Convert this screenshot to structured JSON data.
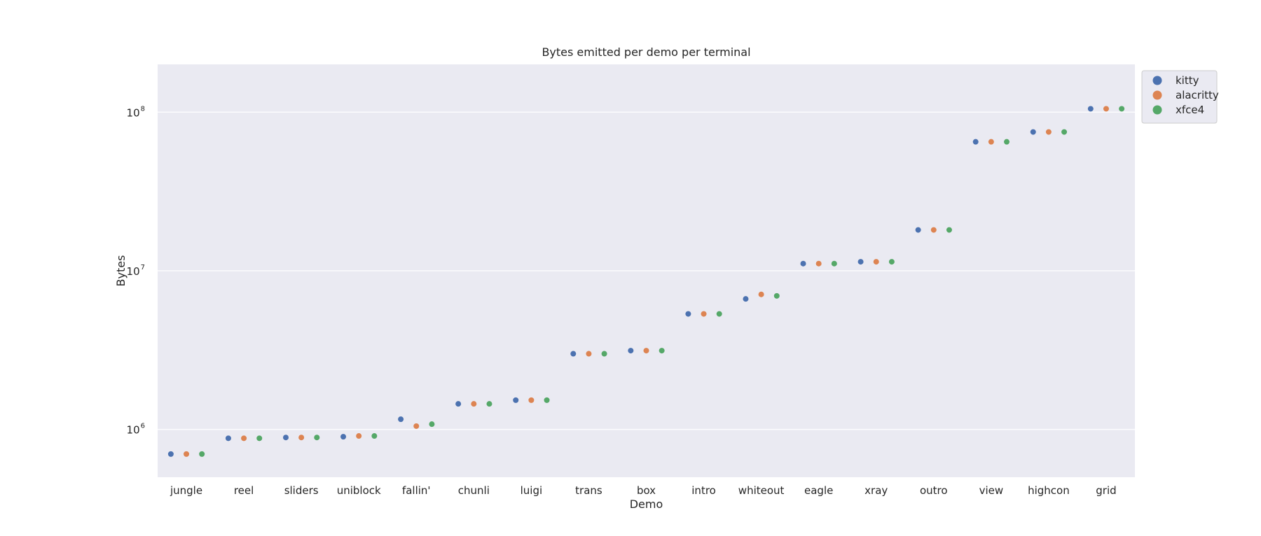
{
  "chart_data": {
    "type": "scatter",
    "title": "Bytes emitted per demo per terminal",
    "xlabel": "Demo",
    "ylabel": "Bytes",
    "yscale": "log",
    "ylim": [
      500000,
      200000000
    ],
    "y_ticks": [
      {
        "value": 1000000,
        "base": "10",
        "exp": "6"
      },
      {
        "value": 10000000,
        "base": "10",
        "exp": "7"
      },
      {
        "value": 100000000,
        "base": "10",
        "exp": "8"
      }
    ],
    "grid": true,
    "legend_position": "upper right, outside plot",
    "categories": [
      "jungle",
      "reel",
      "sliders",
      "uniblock",
      "fallin'",
      "chunli",
      "luigi",
      "trans",
      "box",
      "intro",
      "whiteout",
      "eagle",
      "xray",
      "outro",
      "view",
      "highcon",
      "grid"
    ],
    "series": [
      {
        "name": "kitty",
        "color": "#4c72b0",
        "values": [
          700000,
          880000,
          890000,
          900000,
          1160000,
          1450000,
          1530000,
          3000000,
          3140000,
          5350000,
          6650000,
          11100000,
          11400000,
          18100000,
          65000000,
          75000000,
          105000000
        ]
      },
      {
        "name": "alacritty",
        "color": "#dd8452",
        "values": [
          700000,
          880000,
          890000,
          910000,
          1050000,
          1450000,
          1530000,
          3000000,
          3140000,
          5350000,
          7100000,
          11100000,
          11400000,
          18100000,
          65000000,
          75000000,
          105000000
        ]
      },
      {
        "name": "xfce4",
        "color": "#55a868",
        "values": [
          700000,
          880000,
          890000,
          910000,
          1080000,
          1450000,
          1530000,
          3000000,
          3140000,
          5350000,
          6950000,
          11100000,
          11400000,
          18100000,
          65000000,
          75000000,
          105000000
        ]
      }
    ]
  },
  "colors": {
    "plot_background": "#eaeaf2",
    "grid": "#ffffff"
  }
}
